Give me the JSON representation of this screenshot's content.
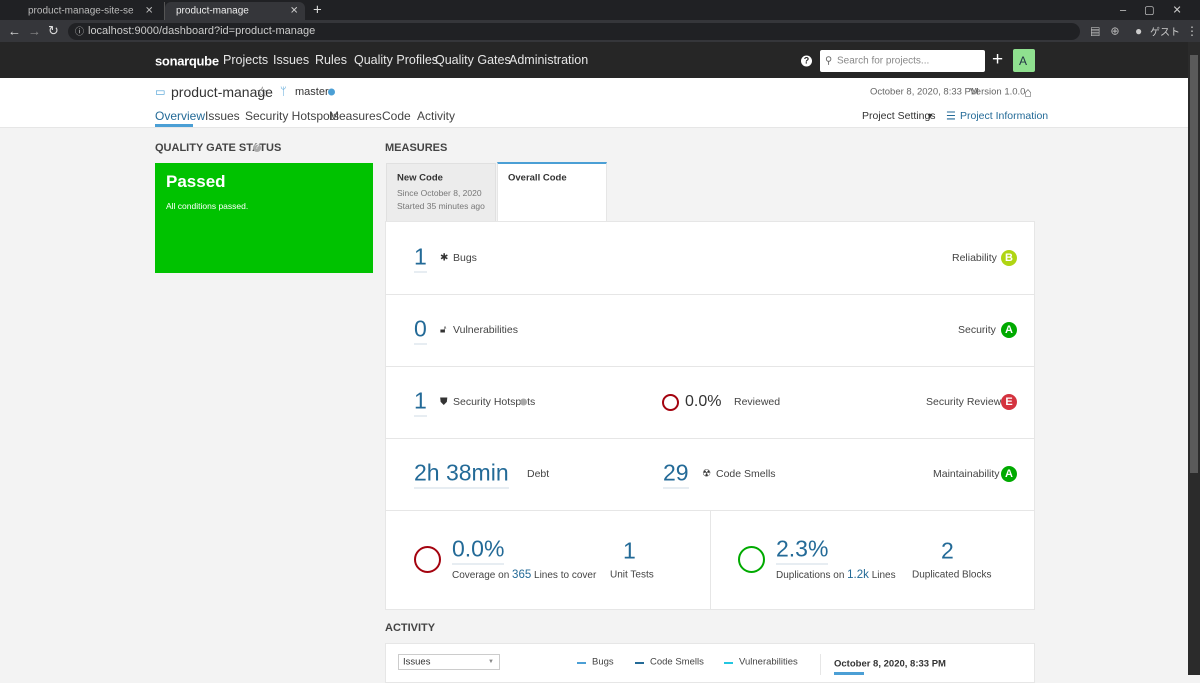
{
  "browser": {
    "tabs": [
      "product-manage-site-service-for",
      "product-manage"
    ],
    "url": "localhost:9000/dashboard?id=product-manage",
    "profile": "ゲスト"
  },
  "nav": {
    "logo": "sonarqube",
    "menu": [
      "Projects",
      "Issues",
      "Rules",
      "Quality Profiles",
      "Quality Gates",
      "Administration"
    ],
    "search_placeholder": "Search for projects...",
    "avatar": "A"
  },
  "project": {
    "name": "product-manage",
    "branch": "master",
    "analysis_date": "October 8, 2020, 8:33 PM",
    "version": "Version 1.0.0",
    "tabs": [
      "Overview",
      "Issues",
      "Security Hotspots",
      "Measures",
      "Code",
      "Activity"
    ],
    "settings": "Project Settings",
    "information": "Project Information"
  },
  "quality_gate": {
    "heading": "QUALITY GATE STATUS",
    "status": "Passed",
    "message": "All conditions passed."
  },
  "measures": {
    "heading": "MEASURES",
    "new_code": {
      "title": "New Code",
      "since": "Since October 8, 2020",
      "started": "Started 35 minutes ago"
    },
    "overall_code": "Overall Code",
    "reliability": {
      "value": 1,
      "label": "Bugs",
      "rating_label": "Reliability",
      "rating": "B"
    },
    "security": {
      "value": 0,
      "label": "Vulnerabilities",
      "rating_label": "Security",
      "rating": "A"
    },
    "hotspots": {
      "value": 1,
      "label": "Security Hotspots",
      "reviewed": "0.0%",
      "reviewed_label": "Reviewed",
      "rating_label": "Security Review",
      "rating": "E"
    },
    "maintainability": {
      "debt": "2h 38min",
      "debt_label": "Debt",
      "value": 29,
      "label": "Code Smells",
      "rating_label": "Maintainability",
      "rating": "A"
    },
    "coverage": {
      "value": "0.0%",
      "prefix": "Coverage on",
      "lines": 365,
      "suffix": "Lines to cover",
      "tests": 1,
      "tests_label": "Unit Tests"
    },
    "duplications": {
      "value": "2.3%",
      "prefix": "Duplications on",
      "lines": "1.2k",
      "suffix": "Lines",
      "blocks": 2,
      "blocks_label": "Duplicated Blocks"
    }
  },
  "activity": {
    "heading": "ACTIVITY",
    "select": "Issues",
    "legend": [
      "Bugs",
      "Code Smells",
      "Vulnerabilities"
    ],
    "date": "October 8, 2020, 8:33 PM"
  }
}
